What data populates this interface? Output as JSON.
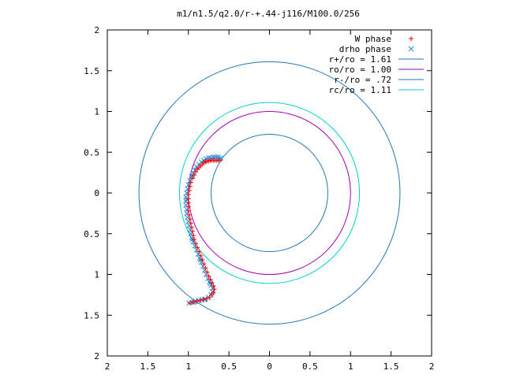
{
  "chart_data": {
    "type": "scatter",
    "title": "m1/n1.5/q2.0/r-+.44-j116/M100.0/256",
    "xlim": [
      2,
      -2
    ],
    "ylim": [
      -2,
      2
    ],
    "x_ticks": [
      {
        "value": -2,
        "label": "2"
      },
      {
        "value": -1.5,
        "label": "1.5"
      },
      {
        "value": -1,
        "label": "1"
      },
      {
        "value": -0.5,
        "label": "0.5"
      },
      {
        "value": 0,
        "label": "0"
      },
      {
        "value": 0.5,
        "label": "0.5"
      },
      {
        "value": 1,
        "label": "1"
      },
      {
        "value": 1.5,
        "label": "1.5"
      },
      {
        "value": 2,
        "label": "2"
      }
    ],
    "y_ticks": [
      {
        "value": 2,
        "label": "2"
      },
      {
        "value": 1.5,
        "label": "1.5"
      },
      {
        "value": 1,
        "label": "1"
      },
      {
        "value": 0.5,
        "label": "0.5"
      },
      {
        "value": 0,
        "label": "0"
      },
      {
        "value": -0.5,
        "label": "0.5"
      },
      {
        "value": -1,
        "label": "1"
      },
      {
        "value": -1.5,
        "label": "1.5"
      },
      {
        "value": -2,
        "label": "2"
      }
    ],
    "grid": false,
    "legend": "top-right",
    "circles": [
      {
        "name": "r+/ro = 1.61",
        "radius": 1.61,
        "color": "#1f77b4"
      },
      {
        "name": "ro/ro = 1.00",
        "radius": 1.0,
        "color": "#a000b4"
      },
      {
        "name": "r-/ro = .72",
        "radius": 0.72,
        "color": "#1f77b4"
      },
      {
        "name": "rc/ro = 1.11",
        "radius": 1.11,
        "color": "#00d0d0"
      }
    ],
    "series": [
      {
        "name": "W phase",
        "marker": "plus",
        "color": "#ff0000",
        "points": [
          [
            0.61,
            0.4
          ],
          [
            0.63,
            0.4
          ],
          [
            0.65,
            0.4
          ],
          [
            0.67,
            0.4
          ],
          [
            0.69,
            0.4
          ],
          [
            0.71,
            0.4
          ],
          [
            0.73,
            0.4
          ],
          [
            0.75,
            0.39
          ],
          [
            0.77,
            0.39
          ],
          [
            0.79,
            0.38
          ],
          [
            0.81,
            0.37
          ],
          [
            0.83,
            0.35
          ],
          [
            0.85,
            0.33
          ],
          [
            0.87,
            0.31
          ],
          [
            0.89,
            0.29
          ],
          [
            0.91,
            0.26
          ],
          [
            0.93,
            0.22
          ],
          [
            0.95,
            0.18
          ],
          [
            0.97,
            0.13
          ],
          [
            0.98,
            0.08
          ],
          [
            0.99,
            0.03
          ],
          [
            1.0,
            -0.02
          ],
          [
            1.0,
            -0.07
          ],
          [
            1.0,
            -0.12
          ],
          [
            1.0,
            -0.17
          ],
          [
            1.0,
            -0.22
          ],
          [
            0.99,
            -0.27
          ],
          [
            0.98,
            -0.32
          ],
          [
            0.97,
            -0.37
          ],
          [
            0.96,
            -0.42
          ],
          [
            0.95,
            -0.47
          ],
          [
            0.94,
            -0.52
          ],
          [
            0.93,
            -0.57
          ],
          [
            0.91,
            -0.62
          ],
          [
            0.89,
            -0.67
          ],
          [
            0.87,
            -0.72
          ],
          [
            0.85,
            -0.77
          ],
          [
            0.83,
            -0.82
          ],
          [
            0.81,
            -0.87
          ],
          [
            0.79,
            -0.92
          ],
          [
            0.77,
            -0.97
          ],
          [
            0.75,
            -1.02
          ],
          [
            0.73,
            -1.06
          ],
          [
            0.71,
            -1.1
          ],
          [
            0.69,
            -1.14
          ],
          [
            0.68,
            -1.18
          ],
          [
            0.69,
            -1.22
          ],
          [
            0.71,
            -1.25
          ],
          [
            0.74,
            -1.28
          ],
          [
            0.78,
            -1.3
          ],
          [
            0.82,
            -1.31
          ],
          [
            0.86,
            -1.32
          ],
          [
            0.9,
            -1.33
          ],
          [
            0.94,
            -1.34
          ],
          [
            0.98,
            -1.35
          ]
        ]
      },
      {
        "name": "drho phase",
        "marker": "cross",
        "color": "#1a8ce0",
        "points": [
          [
            0.6,
            0.43
          ],
          [
            0.63,
            0.44
          ],
          [
            0.66,
            0.44
          ],
          [
            0.69,
            0.44
          ],
          [
            0.72,
            0.43
          ],
          [
            0.75,
            0.43
          ],
          [
            0.78,
            0.42
          ],
          [
            0.81,
            0.4
          ],
          [
            0.84,
            0.38
          ],
          [
            0.87,
            0.35
          ],
          [
            0.9,
            0.32
          ],
          [
            0.92,
            0.28
          ],
          [
            0.94,
            0.24
          ],
          [
            0.96,
            0.2
          ],
          [
            0.98,
            0.15
          ],
          [
            1.0,
            0.1
          ],
          [
            1.01,
            0.05
          ],
          [
            1.02,
            0.0
          ],
          [
            1.03,
            -0.05
          ],
          [
            1.03,
            -0.1
          ],
          [
            1.03,
            -0.15
          ],
          [
            1.02,
            -0.2
          ],
          [
            1.02,
            -0.25
          ],
          [
            1.01,
            -0.3
          ],
          [
            1.0,
            -0.35
          ],
          [
            0.99,
            -0.4
          ],
          [
            0.98,
            -0.45
          ],
          [
            0.97,
            -0.5
          ],
          [
            0.96,
            -0.55
          ],
          [
            0.94,
            -0.6
          ],
          [
            0.92,
            -0.65
          ],
          [
            0.9,
            -0.7
          ],
          [
            0.88,
            -0.75
          ],
          [
            0.86,
            -0.8
          ],
          [
            0.84,
            -0.85
          ],
          [
            0.82,
            -0.9
          ],
          [
            0.8,
            -0.95
          ],
          [
            0.78,
            -1.0
          ],
          [
            0.76,
            -1.05
          ],
          [
            0.74,
            -1.09
          ],
          [
            0.72,
            -1.13
          ],
          [
            0.7,
            -1.17
          ],
          [
            0.7,
            -1.21
          ],
          [
            0.72,
            -1.25
          ],
          [
            0.75,
            -1.28
          ],
          [
            0.79,
            -1.3
          ],
          [
            0.83,
            -1.31
          ],
          [
            0.87,
            -1.32
          ],
          [
            0.91,
            -1.33
          ],
          [
            0.95,
            -1.34
          ],
          [
            0.99,
            -1.35
          ],
          [
            0.62,
            0.41
          ],
          [
            0.7,
            0.41
          ],
          [
            0.8,
            0.39
          ],
          [
            0.95,
            0.21
          ],
          [
            1.02,
            -0.08
          ],
          [
            0.95,
            -0.57
          ],
          [
            0.85,
            -0.82
          ],
          [
            0.73,
            -1.11
          ],
          [
            0.8,
            -1.31
          ],
          [
            0.93,
            -1.34
          ]
        ]
      }
    ]
  }
}
